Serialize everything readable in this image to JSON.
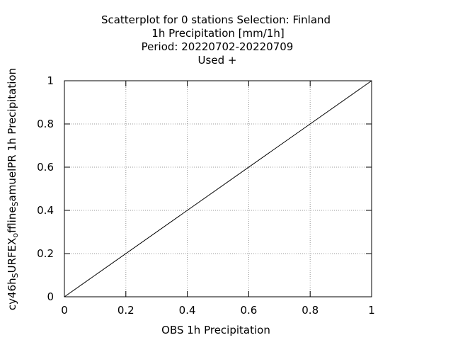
{
  "chart_data": {
    "type": "scatter",
    "title_lines": [
      "Scatterplot for    0 stations Selection: Finland",
      "1h Precipitation [mm/1h]",
      "Period: 20220702-20220709",
      "Used   +"
    ],
    "xlabel": "OBS 1h Precipitation",
    "ylabel": {
      "parts": [
        {
          "text": "cy46h",
          "sub": false
        },
        {
          "text": "S",
          "sub": true
        },
        {
          "text": "URFEX",
          "sub": false
        },
        {
          "text": "o",
          "sub": true
        },
        {
          "text": "ffline",
          "sub": false
        },
        {
          "text": "S",
          "sub": true
        },
        {
          "text": "amuelPR 1h Precipitation",
          "sub": false
        }
      ]
    },
    "xlim": [
      0,
      1
    ],
    "ylim": [
      0,
      1
    ],
    "xticks": [
      0,
      0.2,
      0.4,
      0.6,
      0.8,
      1
    ],
    "yticks": [
      0,
      0.2,
      0.4,
      0.6,
      0.8,
      1
    ],
    "xtick_labels": [
      "0",
      "0.2",
      "0.4",
      "0.6",
      "0.8",
      "1"
    ],
    "ytick_labels": [
      "0",
      "0.2",
      "0.4",
      "0.6",
      "0.8",
      "1"
    ],
    "grid": true,
    "reference_line": {
      "x": [
        0,
        1
      ],
      "y": [
        0,
        1
      ]
    },
    "series": [
      {
        "values": []
      }
    ]
  }
}
